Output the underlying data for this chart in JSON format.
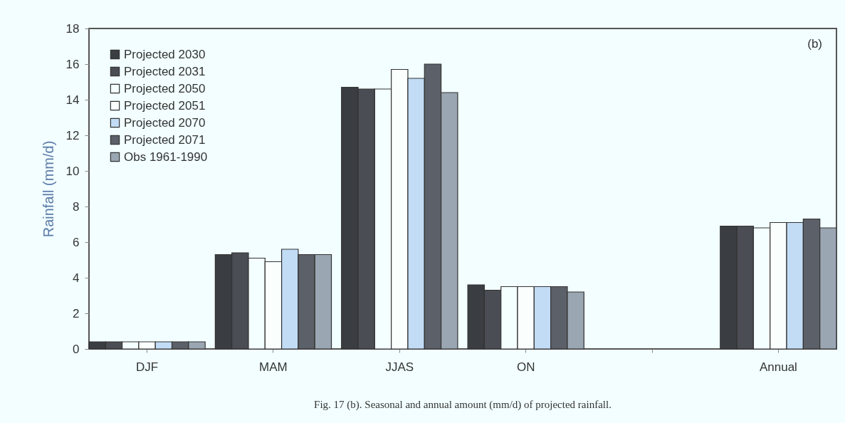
{
  "chart_data": {
    "type": "bar",
    "categories": [
      "DJF",
      "MAM",
      "JJAS",
      "ON",
      null,
      "Annual"
    ],
    "ylabel": "Rainfall (mm/d)",
    "ylim": [
      0,
      18
    ],
    "yticks": [
      0,
      2,
      4,
      6,
      8,
      10,
      12,
      14,
      16,
      18
    ],
    "grid": false,
    "legend": "top left",
    "annotations": [
      "(b)",
      "Fig. 17 (b). Seasonal and annual amount (mm/d) of projected rainfall."
    ],
    "series": [
      {
        "name": "Projected 2030",
        "color": "#3a3d42",
        "values": [
          0.4,
          5.3,
          14.7,
          3.6,
          null,
          6.9
        ]
      },
      {
        "name": "Projected 2031",
        "color": "#4a4d53",
        "values": [
          0.4,
          5.4,
          14.6,
          3.3,
          null,
          6.9
        ]
      },
      {
        "name": "Projected 2050",
        "color": "#f4ffff",
        "values": [
          0.4,
          5.1,
          14.6,
          3.5,
          null,
          6.8
        ]
      },
      {
        "name": "Projected 2051",
        "color": "#fafffe",
        "values": [
          0.4,
          4.9,
          15.7,
          3.5,
          null,
          7.1
        ]
      },
      {
        "name": "Projected 2070",
        "color": "#c2dcf6",
        "values": [
          0.4,
          5.6,
          15.2,
          3.5,
          null,
          7.1
        ]
      },
      {
        "name": "Projected 2071",
        "color": "#5c6068",
        "values": [
          0.4,
          5.3,
          16.0,
          3.5,
          null,
          7.3
        ]
      },
      {
        "name": "Obs 1961-1990",
        "color": "#9aa6b2",
        "values": [
          0.4,
          5.3,
          14.4,
          3.2,
          null,
          6.8
        ]
      }
    ]
  }
}
